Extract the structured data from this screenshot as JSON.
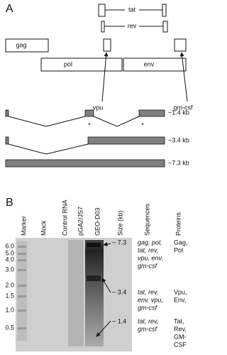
{
  "panel_a": {
    "label": "A",
    "genes": {
      "tat": "tat",
      "rev": "rev",
      "gag": "gag",
      "pol": "pol",
      "vpu": "vpu",
      "env": "env",
      "gm_csf": "gm-csf"
    },
    "asterisks": [
      "*",
      "*"
    ],
    "transcripts": [
      "~1.4 kb",
      "~3.4 kb",
      "~7.3 kb"
    ]
  },
  "panel_b": {
    "label": "B",
    "lanes": [
      "Marker",
      "Mock",
      "Control RNA",
      "pGA2/JS7",
      "GEO-D03"
    ],
    "columns": [
      "Size (kb)",
      "Sequences",
      "Proteins"
    ],
    "marker_sizes": [
      "6.0",
      "5.0",
      "4.0",
      "3.0",
      "2.0",
      "1.5",
      "1.0",
      "0.5"
    ],
    "bands": [
      {
        "size": "~ 7.3",
        "sequences": [
          "gag, pol,",
          "tat, rev,",
          "vpu, env,",
          "gm-csf"
        ],
        "proteins": [
          "Gag,",
          "Pol"
        ]
      },
      {
        "size": "~ 3.4",
        "sequences": [
          "tat, rev,",
          "env, vpu,",
          "gm-csf"
        ],
        "proteins": [
          "Vpu,",
          "Env,"
        ]
      },
      {
        "size": "~ 1.4",
        "sequences": [
          "tat, rev,",
          "gm-csf"
        ],
        "proteins": [
          "Tat,",
          "Rev,",
          "GM-",
          "CSF"
        ]
      }
    ]
  }
}
